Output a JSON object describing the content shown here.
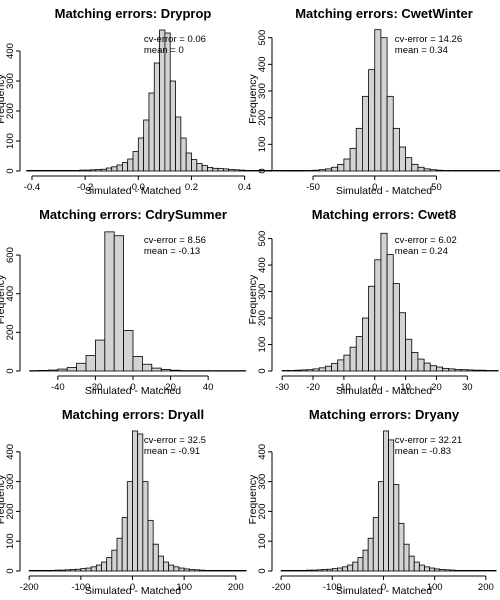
{
  "chart_data": [
    {
      "type": "bar",
      "title": "Matching errors: Dryprop",
      "xlabel": "Simulated - Matched",
      "ylabel": "Frequency",
      "annotations": [
        "cv-error = 0.06",
        "mean = 0"
      ],
      "bin_width": 0.02,
      "bin_start": -0.42,
      "values": [
        2,
        2,
        2,
        2,
        2,
        2,
        2,
        2,
        2,
        2,
        3,
        3,
        4,
        5,
        6,
        10,
        14,
        20,
        28,
        40,
        65,
        110,
        170,
        260,
        360,
        470,
        460,
        300,
        180,
        110,
        60,
        38,
        25,
        18,
        12,
        9,
        8,
        7,
        5,
        4,
        3,
        2,
        2,
        2,
        2,
        2,
        2,
        2,
        2,
        2,
        2,
        2
      ],
      "xlim": [
        -0.43,
        0.39
      ],
      "ylim": [
        0,
        480
      ],
      "xticks": [
        -0.4,
        -0.2,
        0.0,
        0.2,
        0.4
      ],
      "xtick_labels": [
        "-0.4",
        "-0.2",
        "0.0",
        "0.2",
        "0.4"
      ],
      "yticks": [
        0,
        100,
        200,
        300,
        400
      ],
      "ytick_labels": [
        "0",
        "100",
        "200",
        "300",
        "400"
      ]
    },
    {
      "type": "bar",
      "title": "Matching errors: CwetWinter",
      "xlabel": "Simulated - Matched",
      "ylabel": "Frequency",
      "annotations": [
        "cv-error = 14.26",
        "mean = 0.34"
      ],
      "bin_width": 5,
      "bin_start": -75,
      "values": [
        2,
        2,
        2,
        2,
        2,
        3,
        5,
        8,
        14,
        25,
        45,
        85,
        160,
        280,
        380,
        530,
        500,
        280,
        160,
        90,
        50,
        25,
        14,
        8,
        5,
        3,
        2,
        2,
        2,
        2,
        2,
        2,
        2,
        2,
        2,
        2
      ],
      "xlim": [
        -80,
        95
      ],
      "ylim": [
        0,
        540
      ],
      "xticks": [
        -50,
        0,
        50
      ],
      "xtick_labels": [
        "-50",
        "0",
        "50"
      ],
      "yticks": [
        0,
        100,
        200,
        300,
        400,
        500
      ],
      "ytick_labels": [
        "0",
        "100",
        "200",
        "300",
        "400",
        "500"
      ]
    },
    {
      "type": "bar",
      "title": "Matching errors: CdrySummer",
      "xlabel": "Simulated - Matched",
      "ylabel": "Frequency",
      "annotations": [
        "cv-error = 8.56",
        "mean = -0.13"
      ],
      "bin_width": 5,
      "bin_start": -55,
      "values": [
        2,
        3,
        5,
        10,
        18,
        40,
        80,
        160,
        720,
        700,
        210,
        75,
        35,
        15,
        8,
        4,
        2,
        2,
        2,
        2,
        2,
        2,
        2
      ],
      "xlim": [
        -58,
        58
      ],
      "ylim": [
        0,
        740
      ],
      "xticks": [
        -40,
        -20,
        0,
        20,
        40
      ],
      "xtick_labels": [
        "-40",
        "-20",
        "0",
        "20",
        "40"
      ],
      "yticks": [
        0,
        200,
        400,
        600
      ],
      "ytick_labels": [
        "0",
        "200",
        "400",
        "600"
      ]
    },
    {
      "type": "bar",
      "title": "Matching errors: Cwet8",
      "xlabel": "Simulated - Matched",
      "ylabel": "Frequency",
      "annotations": [
        "cv-error = 6.02",
        "mean = 0.24"
      ],
      "bin_width": 2,
      "bin_start": -30,
      "values": [
        2,
        2,
        3,
        4,
        5,
        8,
        12,
        18,
        28,
        42,
        60,
        90,
        130,
        200,
        320,
        420,
        520,
        440,
        330,
        220,
        120,
        70,
        45,
        30,
        20,
        15,
        10,
        8,
        6,
        5,
        4,
        3,
        3,
        2,
        2
      ],
      "xlim": [
        -32,
        38
      ],
      "ylim": [
        0,
        540
      ],
      "xticks": [
        -30,
        -20,
        -10,
        0,
        10,
        20,
        30
      ],
      "xtick_labels": [
        "-30",
        "-20",
        "-10",
        "0",
        "10",
        "20",
        "30"
      ],
      "yticks": [
        0,
        100,
        200,
        300,
        400,
        500
      ],
      "ytick_labels": [
        "0",
        "100",
        "200",
        "300",
        "400",
        "500"
      ]
    },
    {
      "type": "bar",
      "title": "Matching errors: Dryall",
      "xlabel": "Simulated - Matched",
      "ylabel": "Frequency",
      "annotations": [
        "cv-error = 32.5",
        "mean = -0.91"
      ],
      "bin_width": 10,
      "bin_start": -200,
      "values": [
        2,
        2,
        2,
        2,
        2,
        3,
        3,
        4,
        5,
        6,
        8,
        10,
        14,
        20,
        30,
        45,
        70,
        110,
        180,
        300,
        470,
        460,
        300,
        170,
        90,
        50,
        30,
        20,
        14,
        10,
        7,
        5,
        4,
        3,
        2,
        2,
        2,
        2,
        2,
        2,
        2,
        2
      ],
      "xlim": [
        -210,
        212
      ],
      "ylim": [
        0,
        480
      ],
      "xticks": [
        -200,
        -100,
        0,
        100,
        200
      ],
      "xtick_labels": [
        "-200",
        "-100",
        "0",
        "100",
        "200"
      ],
      "yticks": [
        0,
        100,
        200,
        300,
        400
      ],
      "ytick_labels": [
        "0",
        "100",
        "200",
        "300",
        "400"
      ]
    },
    {
      "type": "bar",
      "title": "Matching errors: Dryany",
      "xlabel": "Simulated - Matched",
      "ylabel": "Frequency",
      "annotations": [
        "cv-error = 32.21",
        "mean = -0.83"
      ],
      "bin_width": 10,
      "bin_start": -200,
      "values": [
        2,
        2,
        2,
        2,
        2,
        3,
        3,
        4,
        5,
        6,
        8,
        10,
        14,
        20,
        30,
        45,
        70,
        110,
        180,
        300,
        470,
        440,
        290,
        160,
        90,
        50,
        30,
        20,
        14,
        10,
        7,
        5,
        4,
        3,
        2,
        2,
        2,
        2,
        2,
        2,
        2,
        2
      ],
      "xlim": [
        -210,
        212
      ],
      "ylim": [
        0,
        480
      ],
      "xticks": [
        -200,
        -100,
        0,
        100,
        200
      ],
      "xtick_labels": [
        "-200",
        "-100",
        "0",
        "100",
        "200"
      ],
      "yticks": [
        0,
        100,
        200,
        300,
        400
      ],
      "ytick_labels": [
        "0",
        "100",
        "200",
        "300",
        "400"
      ]
    }
  ]
}
